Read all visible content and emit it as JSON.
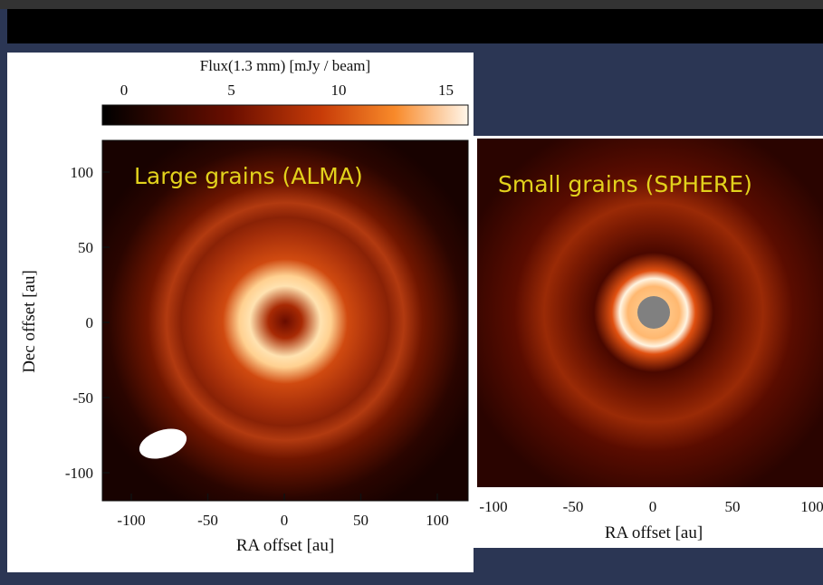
{
  "colorbar": {
    "title": "Flux(1.3 mm) [mJy / beam]",
    "ticks": [
      0,
      5,
      10,
      15
    ]
  },
  "left_panel": {
    "label": "Large grains (ALMA)",
    "x_ticks": [
      -100,
      -50,
      0,
      50,
      100
    ],
    "y_ticks": [
      100,
      50,
      0,
      -50,
      -100
    ],
    "x_label": "RA offset [au]",
    "y_label": "Dec offset [au]"
  },
  "right_panel": {
    "label": "Small grains (SPHERE)",
    "x_ticks": [
      -100,
      -50,
      0,
      50,
      100
    ],
    "x_label": "RA offset [au]"
  }
}
